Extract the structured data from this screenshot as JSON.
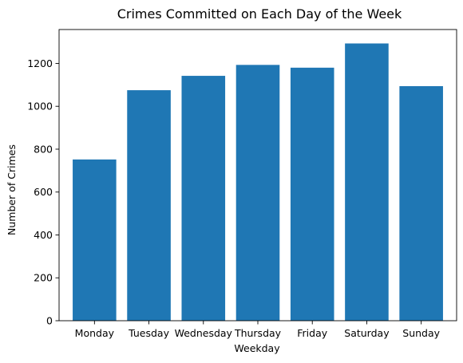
{
  "chart_data": {
    "type": "bar",
    "title": "Crimes Committed on Each Day of the Week",
    "xlabel": "Weekday",
    "ylabel": "Number of Crimes",
    "categories": [
      "Monday",
      "Tuesday",
      "Wednesday",
      "Thursday",
      "Friday",
      "Saturday",
      "Sunday"
    ],
    "values": [
      752,
      1075,
      1142,
      1193,
      1180,
      1293,
      1094
    ],
    "ylim": [
      0,
      1358
    ],
    "yticks": [
      0,
      200,
      400,
      600,
      800,
      1000,
      1200
    ],
    "grid": false,
    "legend": "none",
    "bar_color": "#1f77b4"
  }
}
